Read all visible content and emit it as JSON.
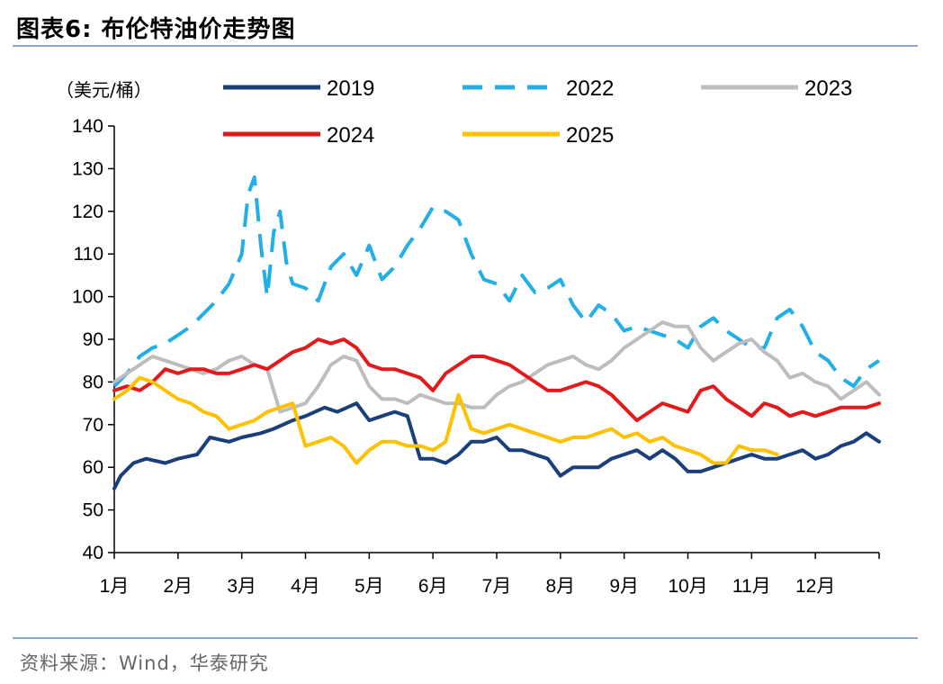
{
  "header": {
    "title": "图表6:   布伦特油价走势图"
  },
  "footer": {
    "source": "资料来源：Wind，华泰研究"
  },
  "chart_data": {
    "type": "line",
    "title": "布伦特油价走势图",
    "ylabel": "（美元/桶）",
    "xlabel": "",
    "ylim": [
      40,
      140
    ],
    "yticks": [
      "40",
      "50",
      "60",
      "70",
      "80",
      "90",
      "100",
      "110",
      "120",
      "130",
      "140"
    ],
    "categories": [
      "1月",
      "2月",
      "3月",
      "4月",
      "5月",
      "6月",
      "7月",
      "8月",
      "9月",
      "10月",
      "11月",
      "12月"
    ],
    "legend_position": "top",
    "series": [
      {
        "name": "2019",
        "color": "#1b3f7a",
        "dash": "solid",
        "x": [
          0,
          0.1,
          0.3,
          0.5,
          0.8,
          1.0,
          1.3,
          1.5,
          1.8,
          2.0,
          2.3,
          2.5,
          2.8,
          3.0,
          3.3,
          3.5,
          3.8,
          4.0,
          4.2,
          4.4,
          4.6,
          4.8,
          5.0,
          5.2,
          5.4,
          5.6,
          5.8,
          6.0,
          6.2,
          6.4,
          6.6,
          6.8,
          7.0,
          7.2,
          7.4,
          7.6,
          7.8,
          8.0,
          8.2,
          8.4,
          8.6,
          8.8,
          9.0,
          9.2,
          9.4,
          9.6,
          9.8,
          10.0,
          10.2,
          10.4,
          10.6,
          10.8,
          11.0,
          11.2,
          11.4,
          11.6,
          11.8,
          12.0
        ],
        "values": [
          55,
          58,
          61,
          62,
          61,
          62,
          63,
          67,
          66,
          67,
          68,
          69,
          71,
          72,
          74,
          73,
          75,
          71,
          72,
          73,
          72,
          62,
          62,
          61,
          63,
          66,
          66,
          67,
          64,
          64,
          63,
          62,
          58,
          60,
          60,
          60,
          62,
          63,
          64,
          62,
          64,
          62,
          59,
          59,
          60,
          61,
          62,
          63,
          62,
          62,
          63,
          64,
          62,
          63,
          65,
          66,
          68,
          66
        ]
      },
      {
        "name": "2022",
        "color": "#22aee6",
        "dash": "dashed",
        "x": [
          0,
          0.2,
          0.4,
          0.6,
          0.8,
          1.0,
          1.2,
          1.4,
          1.6,
          1.8,
          2.0,
          2.1,
          2.2,
          2.3,
          2.4,
          2.5,
          2.6,
          2.7,
          2.8,
          3.0,
          3.2,
          3.4,
          3.6,
          3.8,
          4.0,
          4.2,
          4.4,
          4.6,
          4.8,
          5.0,
          5.2,
          5.4,
          5.6,
          5.8,
          6.0,
          6.2,
          6.4,
          6.6,
          6.8,
          7.0,
          7.2,
          7.4,
          7.6,
          7.8,
          8.0,
          8.2,
          8.4,
          8.6,
          8.8,
          9.0,
          9.2,
          9.4,
          9.6,
          9.8,
          10.0,
          10.2,
          10.4,
          10.6,
          10.8,
          11.0,
          11.2,
          11.4,
          11.6,
          11.8,
          12.0
        ],
        "values": [
          79,
          82,
          86,
          88,
          89,
          91,
          93,
          96,
          99,
          103,
          110,
          124,
          128,
          112,
          100,
          115,
          120,
          108,
          103,
          102,
          99,
          107,
          110,
          105,
          112,
          104,
          107,
          112,
          116,
          121,
          120,
          118,
          110,
          104,
          103,
          99,
          105,
          101,
          102,
          104,
          98,
          94,
          98,
          96,
          92,
          93,
          92,
          91,
          90,
          88,
          93,
          95,
          92,
          90,
          88,
          88,
          95,
          97,
          93,
          87,
          85,
          81,
          79,
          83,
          85
        ]
      },
      {
        "name": "2023",
        "color": "#bdbdbd",
        "dash": "solid",
        "x": [
          0,
          0.2,
          0.4,
          0.6,
          0.8,
          1.0,
          1.2,
          1.4,
          1.6,
          1.8,
          2.0,
          2.2,
          2.4,
          2.6,
          2.8,
          3.0,
          3.2,
          3.4,
          3.6,
          3.8,
          4.0,
          4.2,
          4.4,
          4.6,
          4.8,
          5.0,
          5.2,
          5.4,
          5.6,
          5.8,
          6.0,
          6.2,
          6.4,
          6.6,
          6.8,
          7.0,
          7.2,
          7.4,
          7.6,
          7.8,
          8.0,
          8.2,
          8.4,
          8.6,
          8.8,
          9.0,
          9.2,
          9.4,
          9.6,
          9.8,
          10.0,
          10.2,
          10.4,
          10.6,
          10.8,
          11.0,
          11.2,
          11.4,
          11.6,
          11.8,
          12.0
        ],
        "values": [
          80,
          82,
          84,
          86,
          85,
          84,
          83,
          82,
          83,
          85,
          86,
          84,
          83,
          73,
          74,
          75,
          79,
          84,
          86,
          85,
          79,
          76,
          76,
          75,
          77,
          76,
          75,
          75,
          74,
          74,
          77,
          79,
          80,
          82,
          84,
          85,
          86,
          84,
          83,
          85,
          88,
          90,
          92,
          94,
          93,
          93,
          88,
          85,
          87,
          89,
          90,
          87,
          85,
          81,
          82,
          80,
          79,
          76,
          78,
          80,
          77
        ]
      },
      {
        "name": "2024",
        "color": "#e31a1c",
        "dash": "solid",
        "x": [
          0,
          0.2,
          0.4,
          0.6,
          0.8,
          1.0,
          1.2,
          1.4,
          1.6,
          1.8,
          2.0,
          2.2,
          2.4,
          2.6,
          2.8,
          3.0,
          3.2,
          3.4,
          3.6,
          3.8,
          4.0,
          4.2,
          4.4,
          4.6,
          4.8,
          5.0,
          5.2,
          5.4,
          5.6,
          5.8,
          6.0,
          6.2,
          6.4,
          6.6,
          6.8,
          7.0,
          7.2,
          7.4,
          7.6,
          7.8,
          8.0,
          8.2,
          8.4,
          8.6,
          8.8,
          9.0,
          9.2,
          9.4,
          9.6,
          9.8,
          10.0,
          10.2,
          10.4,
          10.6,
          10.8,
          11.0,
          11.2,
          11.4,
          11.6,
          11.8,
          12.0
        ],
        "values": [
          78,
          79,
          78,
          80,
          83,
          82,
          83,
          83,
          82,
          82,
          83,
          84,
          83,
          85,
          87,
          88,
          90,
          89,
          90,
          88,
          84,
          83,
          83,
          82,
          81,
          78,
          82,
          84,
          86,
          86,
          85,
          84,
          82,
          80,
          78,
          78,
          79,
          80,
          79,
          77,
          74,
          71,
          73,
          75,
          74,
          73,
          78,
          79,
          76,
          74,
          72,
          75,
          74,
          72,
          73,
          72,
          73,
          74,
          74,
          74,
          75
        ]
      },
      {
        "name": "2025",
        "color": "#ffc000",
        "dash": "solid",
        "x": [
          0,
          0.2,
          0.4,
          0.6,
          0.8,
          1.0,
          1.2,
          1.4,
          1.6,
          1.8,
          2.0,
          2.2,
          2.4,
          2.6,
          2.8,
          3.0,
          3.2,
          3.4,
          3.6,
          3.8,
          4.0,
          4.2,
          4.4,
          4.6,
          4.8,
          5.0,
          5.2,
          5.4,
          5.6,
          5.8,
          6.0,
          6.2,
          6.4,
          6.6,
          6.8,
          7.0,
          7.2,
          7.4,
          7.6,
          7.8,
          8.0,
          8.2,
          8.4,
          8.6,
          8.8,
          9.0,
          9.2,
          9.4,
          9.6,
          9.8,
          10.0,
          10.2,
          10.4
        ],
        "values": [
          76,
          78,
          81,
          80,
          78,
          76,
          75,
          73,
          72,
          69,
          70,
          71,
          73,
          74,
          75,
          65,
          66,
          67,
          65,
          61,
          64,
          66,
          66,
          65,
          65,
          64,
          66,
          77,
          69,
          68,
          69,
          70,
          69,
          68,
          67,
          66,
          67,
          67,
          68,
          69,
          67,
          68,
          66,
          67,
          65,
          64,
          63,
          61,
          61,
          65,
          64,
          64,
          63
        ]
      }
    ]
  }
}
